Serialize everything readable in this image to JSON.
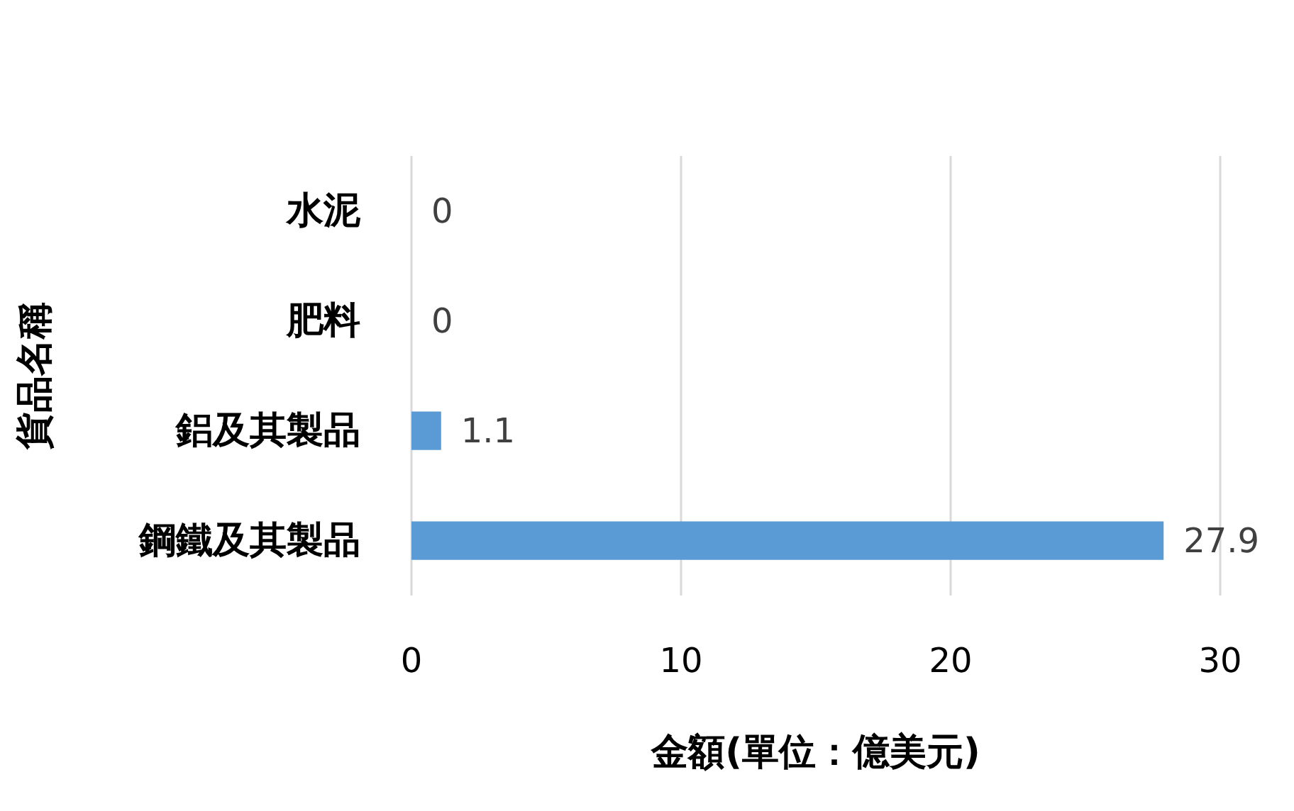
{
  "chart_data": {
    "type": "bar",
    "orientation": "horizontal",
    "categories": [
      "水泥",
      "肥料",
      "鋁及其製品",
      "鋼鐵及其製品"
    ],
    "values": [
      0,
      0,
      1.1,
      27.9
    ],
    "color": "#5b9bd5",
    "xlabel": "金額(單位：億美元)",
    "ylabel": "貨品名稱",
    "xlim": [
      0,
      30
    ],
    "xticks": [
      0,
      10,
      20,
      30
    ],
    "grid": "x",
    "data_labels": true
  }
}
